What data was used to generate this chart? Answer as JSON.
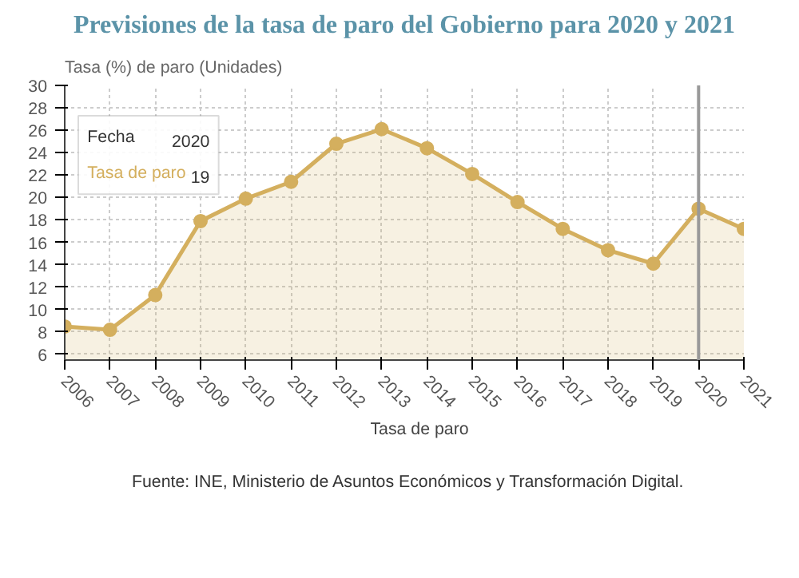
{
  "chart_data": {
    "type": "area",
    "title": "Previsiones de la tasa de paro del Gobierno para 2020 y 2021",
    "ylabel": "Tasa (%) de paro (Unidades)",
    "x": [
      2006,
      2007,
      2008,
      2009,
      2010,
      2011,
      2012,
      2013,
      2014,
      2015,
      2016,
      2017,
      2018,
      2019,
      2020,
      2021
    ],
    "series": [
      {
        "name": "Tasa de paro",
        "color": "#d4af5e",
        "values": [
          8.5,
          8.2,
          11.3,
          17.9,
          19.9,
          21.4,
          24.8,
          26.1,
          24.4,
          22.1,
          19.6,
          17.2,
          15.3,
          14.1,
          19,
          17.2
        ]
      }
    ],
    "xlim": [
      2006,
      2021
    ],
    "xticks": [
      2006,
      2007,
      2008,
      2009,
      2010,
      2011,
      2012,
      2013,
      2014,
      2015,
      2016,
      2017,
      2018,
      2019,
      2020,
      2021
    ],
    "ylim": [
      5.5,
      30
    ],
    "yticks": [
      6,
      8,
      10,
      12,
      14,
      16,
      18,
      20,
      22,
      24,
      26,
      28,
      30
    ],
    "ref_lines": [
      {
        "axis": "x",
        "value": 2020,
        "color": "#999999"
      }
    ],
    "annotations": [
      "Fecha",
      "2020",
      "Tasa de paro",
      "19",
      "Fuente: INE, Ministerio de Asuntos Económicos y Transformación Digital."
    ],
    "grid": true,
    "legend": "bottom",
    "marker": "circle",
    "line_style": "solid"
  }
}
